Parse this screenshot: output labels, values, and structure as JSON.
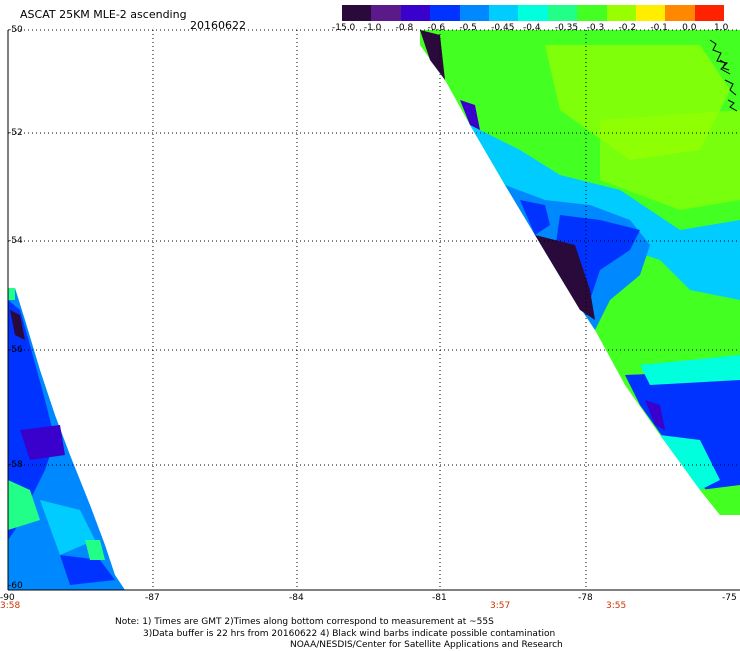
{
  "header": {
    "title": "ASCAT 25KM MLE-2 ascending",
    "date": "20160622"
  },
  "colorbar": {
    "labels": [
      "-15.0",
      "-1.0",
      "-0.8",
      "-0.6",
      "-0.5",
      "-0.45",
      "-0.4",
      "-0.35",
      "-0.3",
      "-0.2",
      "-0.1",
      "0.0",
      "1.0"
    ],
    "colors": [
      "#2a0a3a",
      "#5a1a8a",
      "#3a00cc",
      "#0033ff",
      "#0088ff",
      "#00ccff",
      "#00ffdd",
      "#22ff88",
      "#44ff22",
      "#99ff00",
      "#ffee00",
      "#ff8800",
      "#ff2200"
    ]
  },
  "axes": {
    "lat_labels": [
      "-50",
      "-52",
      "-54",
      "-56",
      "-58",
      "-60"
    ],
    "lon_labels": [
      "-90",
      "-87",
      "-84",
      "-81",
      "-78",
      "-75"
    ]
  },
  "times": [
    "3:58",
    "3:57",
    "3:55"
  ],
  "notes": [
    "Note: 1) Times are GMT 2)Times along bottom correspond to measurement at ~55S",
    "3)Data buffer is 22 hrs from 20160622 4) Black wind barbs indicate possible contamination",
    "NOAA/NESDIS/Center for Satellite Applications and Research"
  ]
}
